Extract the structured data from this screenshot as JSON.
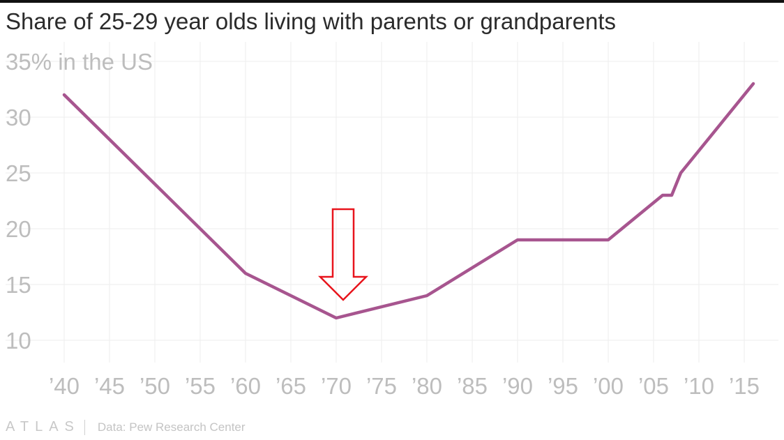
{
  "chart_data": {
    "type": "line",
    "title": "Share of 25-29 year olds living with parents or grandparents",
    "y_top_label": "35% in the US",
    "xlim": [
      1940,
      2016
    ],
    "ylim": [
      10,
      35
    ],
    "x": [
      1940,
      1960,
      1970,
      1980,
      1990,
      2000,
      2006,
      2007,
      2008,
      2016
    ],
    "series": [
      {
        "values": [
          32,
          16,
          12,
          14,
          19,
          19,
          23,
          23,
          25,
          33
        ],
        "color": "#a7558f"
      }
    ],
    "x_ticks": [
      1940,
      1945,
      1950,
      1955,
      1960,
      1965,
      1970,
      1975,
      1980,
      1985,
      1990,
      1995,
      2000,
      2005,
      2010,
      2015
    ],
    "x_tick_labels": [
      "’40",
      "’45",
      "’50",
      "’55",
      "’60",
      "’65",
      "’70",
      "’75",
      "’80",
      "’85",
      "’90",
      "’95",
      "’00",
      "’05",
      "’10",
      "’15"
    ],
    "y_ticks": [
      10,
      15,
      20,
      25,
      30
    ],
    "y_tick_labels": [
      "10",
      "15",
      "20",
      "25",
      "30"
    ],
    "grid": true,
    "annotation": {
      "type": "arrow",
      "points_to_x": 1970,
      "color": "#e8141c"
    }
  },
  "footer": {
    "brand": "ATLAS",
    "source": "Data: Pew Research Center"
  }
}
